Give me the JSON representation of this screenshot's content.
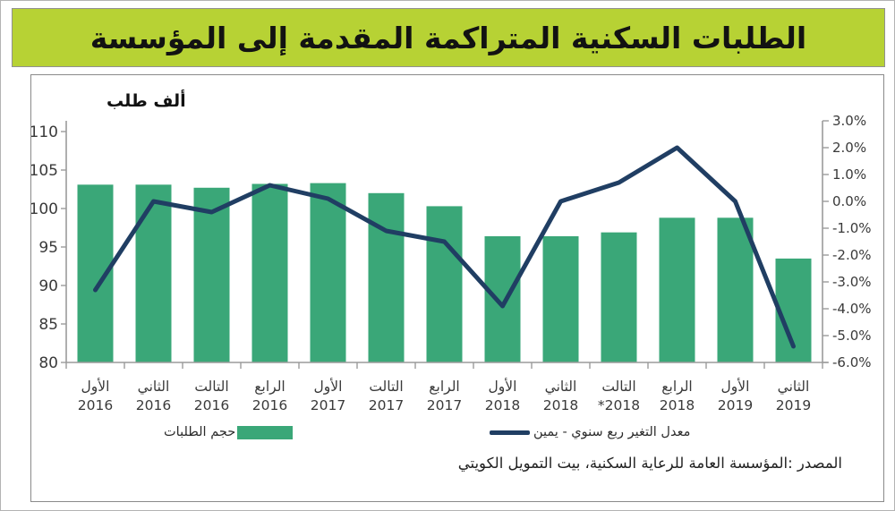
{
  "header": {
    "title": "الطلبات السكنية المتراكمة المقدمة إلى المؤسسة"
  },
  "chart": {
    "units_label": "ألف طلب",
    "legend": {
      "bars_label": "حجم الطلبات",
      "line_label": "معدل التغير ربع سنوي - يمين"
    },
    "source": "المصدر :المؤسسة العامة للرعاية السكنية، بيت التمويل الكويتي",
    "colors": {
      "header_bg": "#b7d234",
      "bar": "#3aa778",
      "line": "#203e63",
      "axis": "#9b9b9b",
      "tick_text": "#3a3a3a"
    }
  },
  "chart_data": {
    "type": "bar",
    "subtype": "bar-with-line-overlay",
    "title": "الطلبات السكنية المتراكمة المقدمة إلى المؤسسة",
    "categories_quarter": [
      "الأول",
      "الثاني",
      "التالت",
      "الرابع",
      "الأول",
      "التالت",
      "الرابع",
      "الأول",
      "الثاني",
      "التالت",
      "الرابع",
      "الأول",
      "الثاني"
    ],
    "categories_year": [
      "2016",
      "2016",
      "2016",
      "2016",
      "2017",
      "2017",
      "2017",
      "2018",
      "2018",
      "*2018",
      "2018",
      "2019",
      "2019"
    ],
    "series": [
      {
        "name": "حجم الطلبات",
        "type": "bar",
        "axis": "left",
        "values": [
          103.1,
          103.1,
          102.7,
          103.2,
          103.3,
          102.0,
          100.3,
          96.4,
          96.4,
          96.9,
          98.8,
          98.8,
          93.5
        ]
      },
      {
        "name": "معدل التغير ربع سنوي - يمين",
        "type": "line",
        "axis": "right",
        "values": [
          -3.3,
          0.0,
          -0.4,
          0.6,
          0.1,
          -1.1,
          -1.5,
          -3.9,
          0.0,
          0.7,
          2.0,
          0.0,
          -5.4
        ]
      }
    ],
    "left_axis": {
      "label": "ألف طلب",
      "min": 80,
      "max": 110,
      "step": 5,
      "ticks": [
        "110",
        "105",
        "100",
        "95",
        "90",
        "85",
        "80"
      ]
    },
    "right_axis": {
      "min": -6.0,
      "max": 3.0,
      "step": 1.0,
      "ticks": [
        "3.0%",
        "2.0%",
        "1.0%",
        "0.0%",
        "-1.0%",
        "-2.0%",
        "-3.0%",
        "-4.0%",
        "-5.0%",
        "-6.0%"
      ]
    },
    "grid": false,
    "legend_position": "bottom"
  }
}
